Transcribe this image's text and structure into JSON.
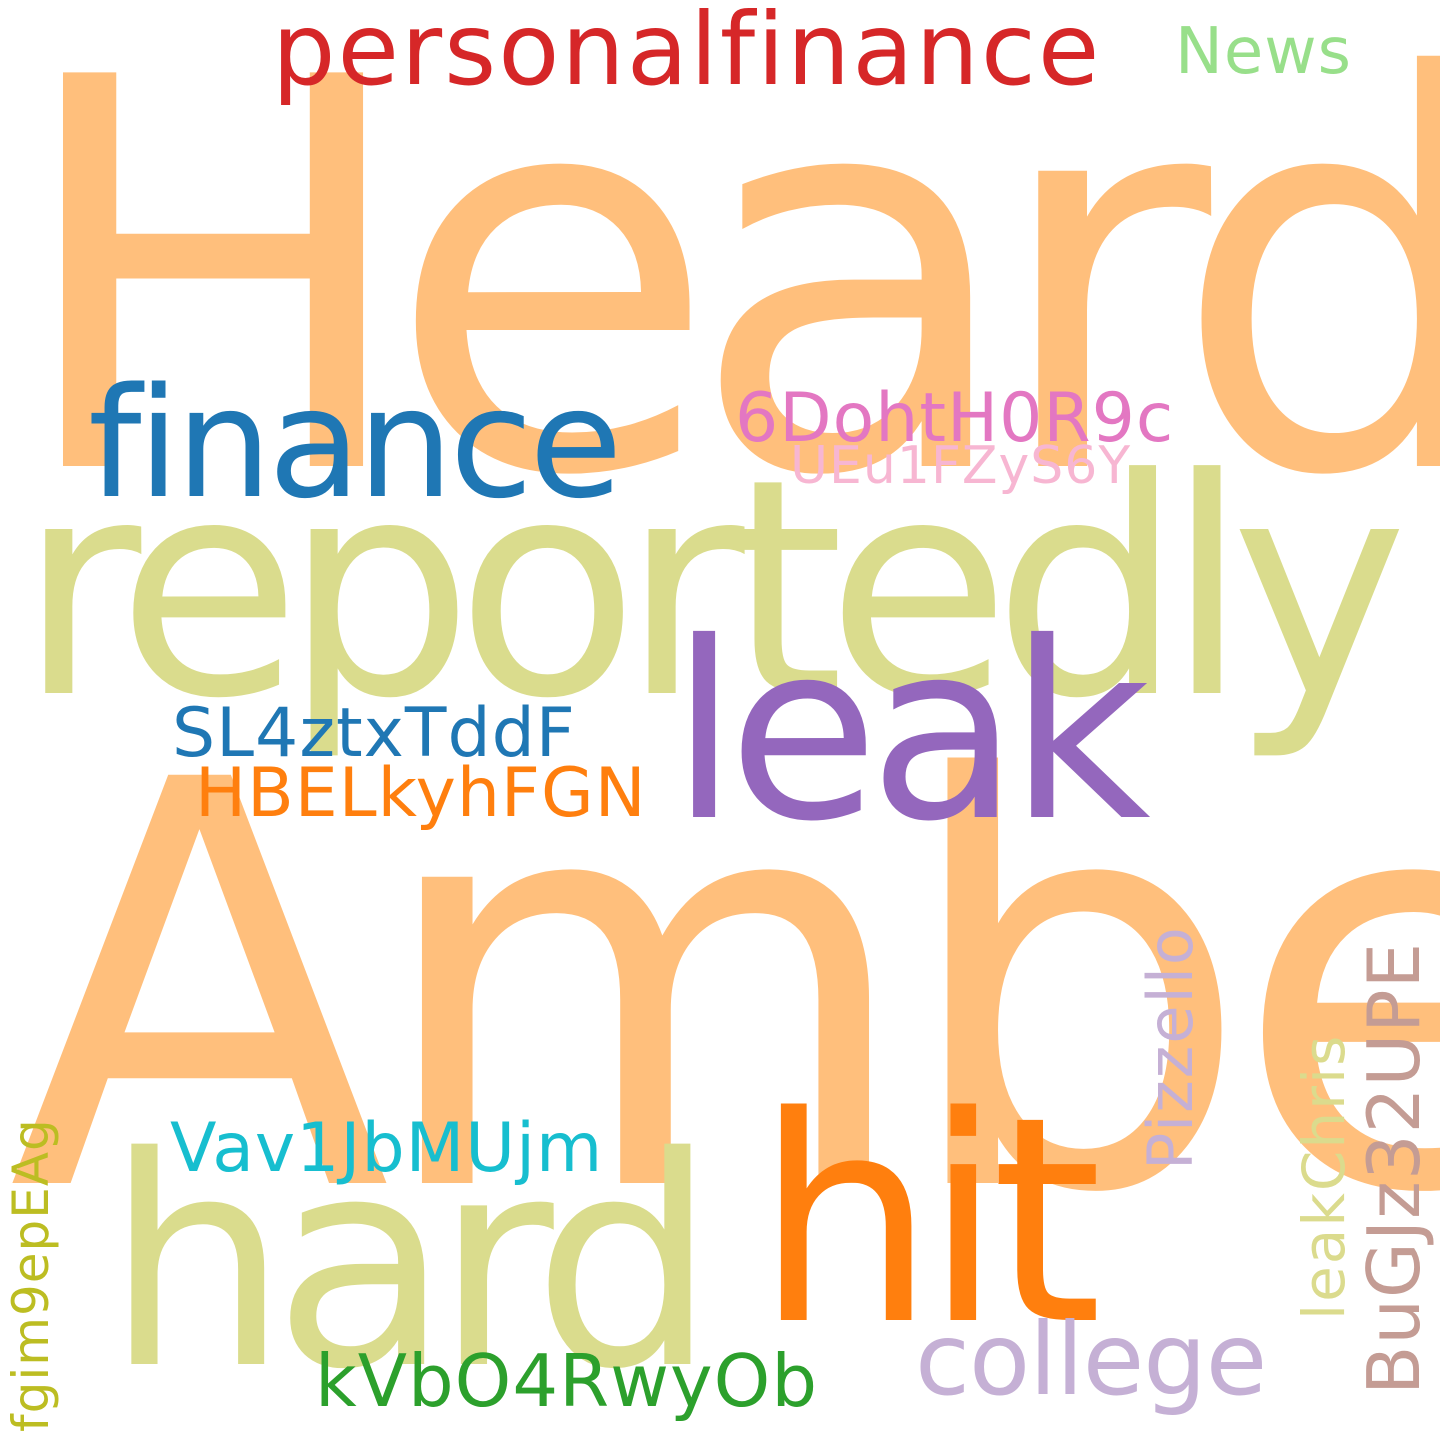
{
  "cloud": {
    "words": {
      "heard": {
        "text": "Heard",
        "color": "#FFBF7C"
      },
      "amber": {
        "text": "Amber",
        "color": "#FFBF7C"
      },
      "reportedly": {
        "text": "reportedly",
        "color": "#DADC8D"
      },
      "hard": {
        "text": "hard",
        "color": "#DADC8D"
      },
      "leak": {
        "text": "leak",
        "color": "#9467BD"
      },
      "hit": {
        "text": "hit",
        "color": "#FF7F0E"
      },
      "finance": {
        "text": "finance",
        "color": "#1F77B4"
      },
      "personalfinance": {
        "text": "personalfinance",
        "color": "#D62728"
      },
      "news": {
        "text": "News",
        "color": "#98DF8A"
      },
      "code_6doht": {
        "text": "6DohtH0R9c",
        "color": "#E377C2"
      },
      "code_ueu1": {
        "text": "UEu1FZyS6Y",
        "color": "#F7B6D2"
      },
      "code_sl4z": {
        "text": "SL4ztxTddF",
        "color": "#1F77B4"
      },
      "code_hbel": {
        "text": "HBELkyhFGN",
        "color": "#FF7F0E"
      },
      "code_vav1": {
        "text": "Vav1JbMUjm",
        "color": "#17BECF"
      },
      "college": {
        "text": "college",
        "color": "#C5B0D5"
      },
      "code_kvbo": {
        "text": "kVbO4RwyOb",
        "color": "#2CA02C"
      },
      "pizzello": {
        "text": "Pizzello",
        "color": "#C5B0D5"
      },
      "leakchris": {
        "text": "leakChris",
        "color": "#DBDB8D"
      },
      "code_bugjz": {
        "text": "BuGJz32UPE",
        "color": "#C49C94"
      },
      "code_fgim": {
        "text": "fgim9epEAg",
        "color": "#BCBD22"
      }
    }
  }
}
